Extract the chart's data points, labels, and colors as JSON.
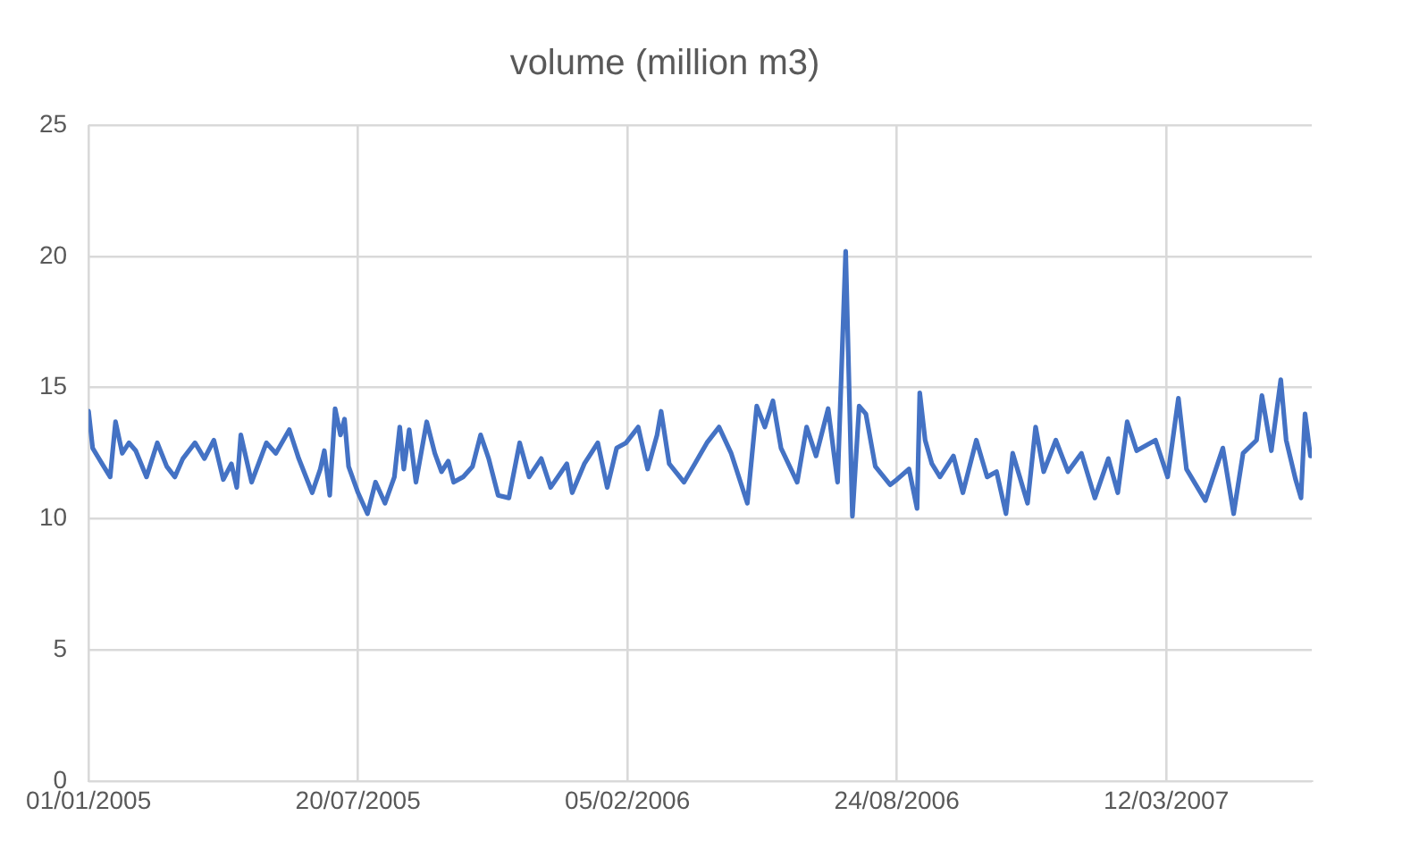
{
  "chart_data": {
    "type": "line",
    "title": "volume (million m3)",
    "x": [
      "2005-01-01",
      "2005-01-04",
      "2005-01-11",
      "2005-01-17",
      "2005-01-21",
      "2005-01-26",
      "2005-01-31",
      "2005-02-05",
      "2005-02-13",
      "2005-02-21",
      "2005-02-28",
      "2005-03-06",
      "2005-03-12",
      "2005-03-21",
      "2005-03-28",
      "2005-04-04",
      "2005-04-11",
      "2005-04-17",
      "2005-04-21",
      "2005-04-24",
      "2005-05-02",
      "2005-05-13",
      "2005-05-20",
      "2005-05-30",
      "2005-06-06",
      "2005-06-16",
      "2005-06-22",
      "2005-06-25",
      "2005-06-29",
      "2005-07-03",
      "2005-07-07",
      "2005-07-10",
      "2005-07-13",
      "2005-07-20",
      "2005-07-27",
      "2005-08-02",
      "2005-08-09",
      "2005-08-16",
      "2005-08-20",
      "2005-08-23",
      "2005-08-27",
      "2005-09-01",
      "2005-09-09",
      "2005-09-15",
      "2005-09-20",
      "2005-09-25",
      "2005-09-29",
      "2005-10-06",
      "2005-10-13",
      "2005-10-19",
      "2005-10-25",
      "2005-11-01",
      "2005-11-09",
      "2005-11-17",
      "2005-11-24",
      "2005-12-03",
      "2005-12-10",
      "2005-12-22",
      "2005-12-26",
      "2006-01-04",
      "2006-01-14",
      "2006-01-21",
      "2006-01-28",
      "2006-02-04",
      "2006-02-13",
      "2006-02-20",
      "2006-02-27",
      "2006-03-02",
      "2006-03-08",
      "2006-03-19",
      "2006-03-27",
      "2006-04-05",
      "2006-04-14",
      "2006-04-23",
      "2006-05-05",
      "2006-05-12",
      "2006-05-18",
      "2006-05-24",
      "2006-05-30",
      "2006-06-11",
      "2006-06-18",
      "2006-06-25",
      "2006-07-04",
      "2006-07-11",
      "2006-07-17",
      "2006-07-22",
      "2006-07-27",
      "2006-08-01",
      "2006-08-08",
      "2006-08-19",
      "2006-08-24",
      "2006-09-02",
      "2006-09-08",
      "2006-09-10",
      "2006-09-14",
      "2006-09-19",
      "2006-09-25",
      "2006-10-05",
      "2006-10-12",
      "2006-10-22",
      "2006-10-30",
      "2006-11-06",
      "2006-11-13",
      "2006-11-18",
      "2006-11-29",
      "2006-12-05",
      "2006-12-11",
      "2006-12-20",
      "2006-12-29",
      "2007-01-08",
      "2007-01-18",
      "2007-01-28",
      "2007-02-04",
      "2007-02-11",
      "2007-02-18",
      "2007-03-04",
      "2007-03-13",
      "2007-03-21",
      "2007-03-27",
      "2007-04-10",
      "2007-04-23",
      "2007-05-01",
      "2007-05-08",
      "2007-05-18",
      "2007-05-22",
      "2007-05-29",
      "2007-06-05",
      "2007-06-09",
      "2007-06-16",
      "2007-06-20",
      "2007-06-23",
      "2007-06-27"
    ],
    "series": [
      {
        "color": "#4472c4",
        "values": [
          14.1,
          12.7,
          12.1,
          11.6,
          13.7,
          12.5,
          12.9,
          12.6,
          11.6,
          12.9,
          12.0,
          11.6,
          12.3,
          12.9,
          12.3,
          13.0,
          11.5,
          12.1,
          11.2,
          13.2,
          11.4,
          12.9,
          12.5,
          13.4,
          12.3,
          11.0,
          11.9,
          12.6,
          10.9,
          14.2,
          13.2,
          13.8,
          12.0,
          11.0,
          10.2,
          11.4,
          10.6,
          11.6,
          13.5,
          11.9,
          13.4,
          11.4,
          13.7,
          12.5,
          11.8,
          12.2,
          11.4,
          11.6,
          12.0,
          13.2,
          12.3,
          10.9,
          10.8,
          12.9,
          11.6,
          12.3,
          11.2,
          12.1,
          11.0,
          12.1,
          12.9,
          11.2,
          12.7,
          12.9,
          13.5,
          11.9,
          13.2,
          14.1,
          12.1,
          11.4,
          12.1,
          12.9,
          13.5,
          12.5,
          10.6,
          14.3,
          13.5,
          14.5,
          12.7,
          11.4,
          13.5,
          12.4,
          14.2,
          11.4,
          20.2,
          10.1,
          14.3,
          14.0,
          12.0,
          11.3,
          11.5,
          11.9,
          10.4,
          14.8,
          13.0,
          12.1,
          11.6,
          12.4,
          11.0,
          13.0,
          11.6,
          11.8,
          10.2,
          12.5,
          10.6,
          13.5,
          11.8,
          13.0,
          11.8,
          12.5,
          10.8,
          12.3,
          11.0,
          13.7,
          12.6,
          13.0,
          11.6,
          14.6,
          11.9,
          10.7,
          12.7,
          10.2,
          12.5,
          13.0,
          14.7,
          12.6,
          15.3,
          13.0,
          11.5,
          10.8,
          14.0,
          12.4
        ]
      }
    ],
    "xlim": [
      "2005-01-01",
      "2007-06-28"
    ],
    "xticks": [
      {
        "value": "2005-01-01",
        "label": "01/01/2005"
      },
      {
        "value": "2005-07-20",
        "label": "20/07/2005"
      },
      {
        "value": "2006-02-05",
        "label": "05/02/2006"
      },
      {
        "value": "2006-08-24",
        "label": "24/08/2006"
      },
      {
        "value": "2007-03-12",
        "label": "12/03/2007"
      }
    ],
    "ylim": [
      0,
      25
    ],
    "yticks": [
      0,
      5,
      10,
      15,
      20,
      25
    ],
    "grid": true,
    "legend": false,
    "marker": "none",
    "line_style": "solid"
  }
}
